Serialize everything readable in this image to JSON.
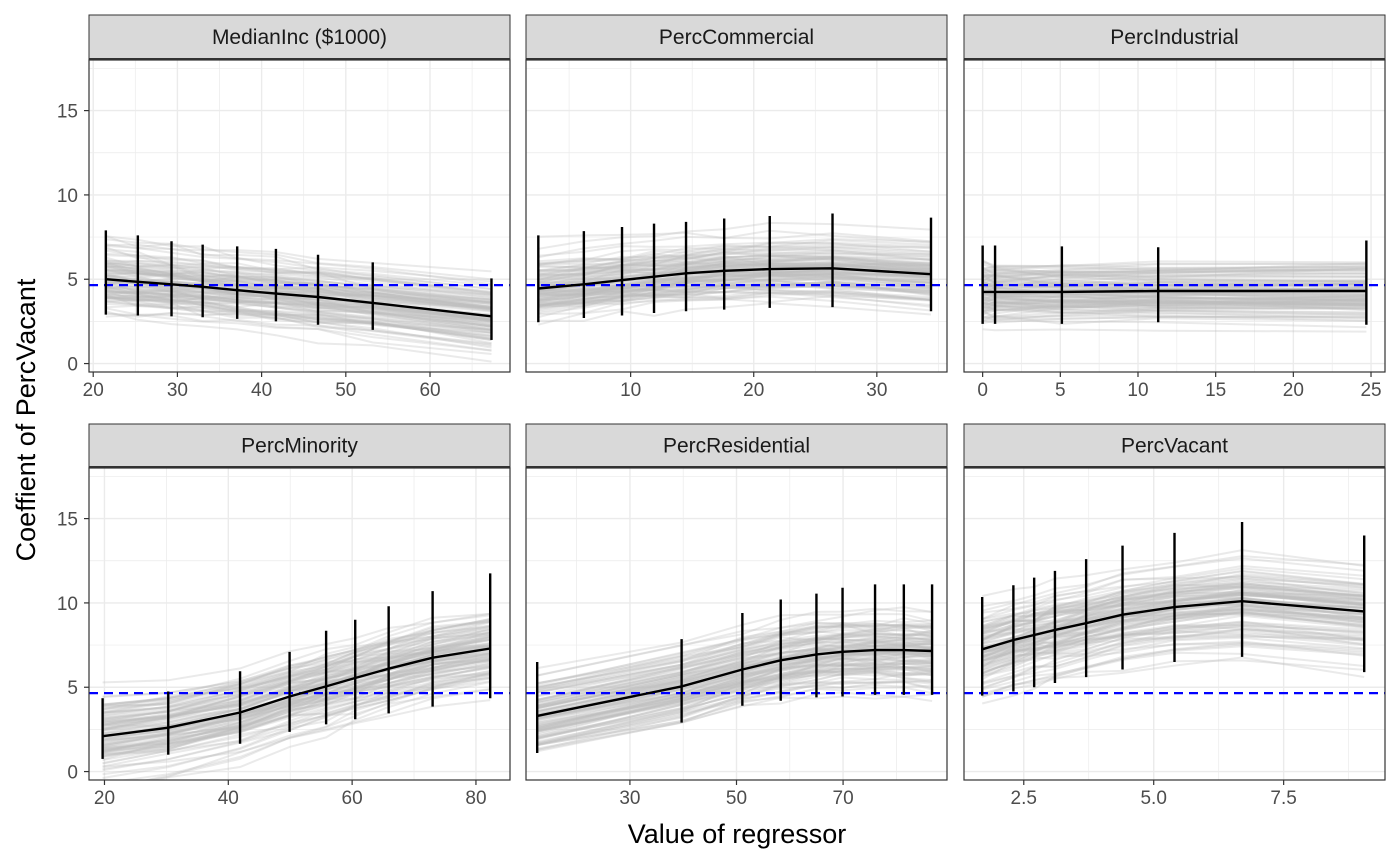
{
  "colors": {
    "reference_line": "#0000ff",
    "fit_line": "#000000",
    "bootstrap_lines": "#bdbdbd",
    "strip_fill": "#d9d9d9",
    "grid": "#ebebeb"
  },
  "chart_data": {
    "type": "line",
    "layout": "facet-grid 2x3",
    "xlabel": "Value of regressor",
    "ylabel": "Coeffient of PercVacant",
    "ylim": [
      -0.5,
      18
    ],
    "yticks": [
      0,
      5,
      10,
      15
    ],
    "reference_line": {
      "y": 4.65,
      "style": "dashed"
    },
    "grid": true,
    "legend": "none",
    "facets": [
      {
        "name": "MedianInc ($1000)",
        "xlim": [
          19.5,
          69.5
        ],
        "xticks": [
          20,
          30,
          40,
          50,
          60
        ],
        "x": [
          21.5,
          25.3,
          29.3,
          33,
          37.1,
          41.7,
          46.7,
          53.2,
          67.3
        ],
        "y": [
          5.0,
          4.85,
          4.7,
          4.55,
          4.35,
          4.15,
          3.95,
          3.6,
          2.8
        ],
        "lower": [
          2.9,
          2.85,
          2.8,
          2.75,
          2.65,
          2.5,
          2.3,
          2.0,
          1.4
        ],
        "upper": [
          7.9,
          7.6,
          7.25,
          7.05,
          6.95,
          6.8,
          6.45,
          6.0,
          5.05
        ],
        "band_spread": 1.9
      },
      {
        "name": "PercCommercial",
        "xlim": [
          1.5,
          35.7
        ],
        "xticks": [
          10,
          20,
          30
        ],
        "x": [
          2.5,
          6.2,
          9.3,
          11.9,
          14.5,
          17.6,
          21.3,
          26.4,
          34.4
        ],
        "y": [
          4.45,
          4.7,
          4.95,
          5.15,
          5.35,
          5.5,
          5.6,
          5.65,
          5.3
        ],
        "lower": [
          2.45,
          2.7,
          2.85,
          3.0,
          3.1,
          3.2,
          3.3,
          3.35,
          3.1
        ],
        "upper": [
          7.6,
          7.85,
          8.1,
          8.3,
          8.4,
          8.6,
          8.75,
          8.9,
          8.65
        ],
        "band_spread": 1.9
      },
      {
        "name": "PercIndustrial",
        "xlim": [
          -1.2,
          25.9
        ],
        "xticks": [
          0,
          5,
          10,
          15,
          20,
          25
        ],
        "x": [
          0.0,
          0.8,
          5.1,
          11.3,
          24.7
        ],
        "y": [
          4.25,
          4.25,
          4.25,
          4.3,
          4.3
        ],
        "lower": [
          2.35,
          2.35,
          2.35,
          2.45,
          2.3
        ],
        "upper": [
          7.0,
          7.0,
          6.95,
          6.9,
          7.3
        ],
        "band_spread": 1.75
      },
      {
        "name": "PercMinority",
        "xlim": [
          17.5,
          85.5
        ],
        "xticks": [
          20,
          40,
          60,
          80
        ],
        "x": [
          19.7,
          30.3,
          41.9,
          49.9,
          55.8,
          60.5,
          65.9,
          73,
          82.3
        ],
        "y": [
          2.1,
          2.6,
          3.5,
          4.45,
          5.05,
          5.55,
          6.1,
          6.75,
          7.3
        ],
        "lower": [
          0.75,
          1.0,
          1.65,
          2.35,
          2.8,
          3.1,
          3.45,
          3.85,
          4.35
        ],
        "upper": [
          4.35,
          4.75,
          5.95,
          7.1,
          8.35,
          9.0,
          9.8,
          10.7,
          11.75
        ],
        "band_spread": 2.3
      },
      {
        "name": "PercResidential",
        "xlim": [
          10.5,
          89.5
        ],
        "xticks": [
          30,
          50,
          70
        ],
        "x": [
          12.6,
          39.7,
          51.1,
          58.3,
          65.0,
          69.9,
          76.0,
          81.4,
          86.7
        ],
        "y": [
          3.3,
          5.05,
          6.05,
          6.6,
          6.95,
          7.1,
          7.2,
          7.2,
          7.15
        ],
        "lower": [
          1.1,
          2.9,
          3.9,
          4.2,
          4.4,
          4.45,
          4.55,
          4.55,
          4.55
        ],
        "upper": [
          6.5,
          7.85,
          9.4,
          10.2,
          10.55,
          10.9,
          11.1,
          11.1,
          11.1
        ],
        "band_spread": 2.1
      },
      {
        "name": "PercVacant",
        "xlim": [
          1.35,
          9.45
        ],
        "xticks": [
          2.5,
          5.0,
          7.5
        ],
        "xtick_labels": [
          "2.5",
          "5.0",
          "7.5"
        ],
        "x": [
          1.7,
          2.3,
          2.7,
          3.1,
          3.7,
          4.4,
          5.4,
          6.7,
          9.05
        ],
        "y": [
          7.25,
          7.8,
          8.1,
          8.4,
          8.8,
          9.3,
          9.75,
          10.1,
          9.5
        ],
        "lower": [
          4.5,
          4.75,
          5.0,
          5.25,
          5.6,
          6.05,
          6.5,
          6.8,
          5.9
        ],
        "upper": [
          10.35,
          11.05,
          11.5,
          11.9,
          12.6,
          13.4,
          14.15,
          14.8,
          14.0
        ],
        "band_spread": 2.5
      }
    ]
  }
}
